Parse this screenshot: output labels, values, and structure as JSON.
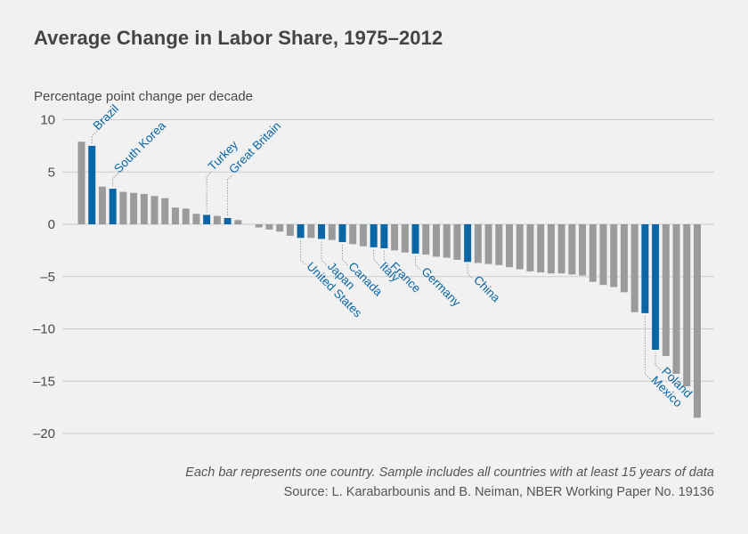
{
  "chart_data": {
    "type": "bar",
    "title": "Average Change in Labor Share, 1975–2012",
    "ylabel": "Percentage point change per decade",
    "xlabel": "",
    "ylim": [
      -20,
      10
    ],
    "yticks": [
      10,
      5,
      0,
      -5,
      -10,
      -15,
      -20
    ],
    "ytick_labels": [
      "10",
      "5",
      "0",
      "–5",
      "–10",
      "–15",
      "–20"
    ],
    "colors": {
      "other": "#9a9b9d",
      "highlight": "#0a66a5",
      "axis": "#cccccc",
      "label": "#0a66a5",
      "leader": "#9a9b9d"
    },
    "values": [
      7.9,
      7.5,
      3.6,
      3.4,
      3.1,
      3.0,
      2.9,
      2.7,
      2.5,
      1.6,
      1.5,
      1.0,
      0.9,
      0.8,
      0.6,
      0.4,
      0.0,
      -0.3,
      -0.5,
      -0.7,
      -1.1,
      -1.3,
      -1.3,
      -1.4,
      -1.5,
      -1.7,
      -1.9,
      -2.1,
      -2.2,
      -2.3,
      -2.5,
      -2.7,
      -2.8,
      -2.9,
      -3.1,
      -3.2,
      -3.4,
      -3.6,
      -3.7,
      -3.8,
      -3.9,
      -4.1,
      -4.3,
      -4.5,
      -4.6,
      -4.7,
      -4.7,
      -4.8,
      -4.9,
      -5.5,
      -5.8,
      -6.0,
      -6.5,
      -8.4,
      -8.5,
      -12.0,
      -12.6,
      -14.3,
      -15.5,
      -18.5
    ],
    "highlights": [
      {
        "index": 1,
        "name": "Brazil"
      },
      {
        "index": 3,
        "name": "South Korea"
      },
      {
        "index": 12,
        "name": "Turkey"
      },
      {
        "index": 14,
        "name": "Great Britain"
      },
      {
        "index": 21,
        "name": "United States"
      },
      {
        "index": 23,
        "name": "Japan"
      },
      {
        "index": 25,
        "name": "Canada"
      },
      {
        "index": 28,
        "name": "Italy"
      },
      {
        "index": 29,
        "name": "France"
      },
      {
        "index": 32,
        "name": "Germany"
      },
      {
        "index": 37,
        "name": "China"
      },
      {
        "index": 54,
        "name": "Mexico"
      },
      {
        "index": 55,
        "name": "Poland"
      }
    ]
  },
  "footer": {
    "note": "Each bar represents one country. Sample includes all countries with at least 15 years of data",
    "source": "Source: L. Karabarbounis and B. Neiman, NBER Working Paper No. 19136"
  }
}
